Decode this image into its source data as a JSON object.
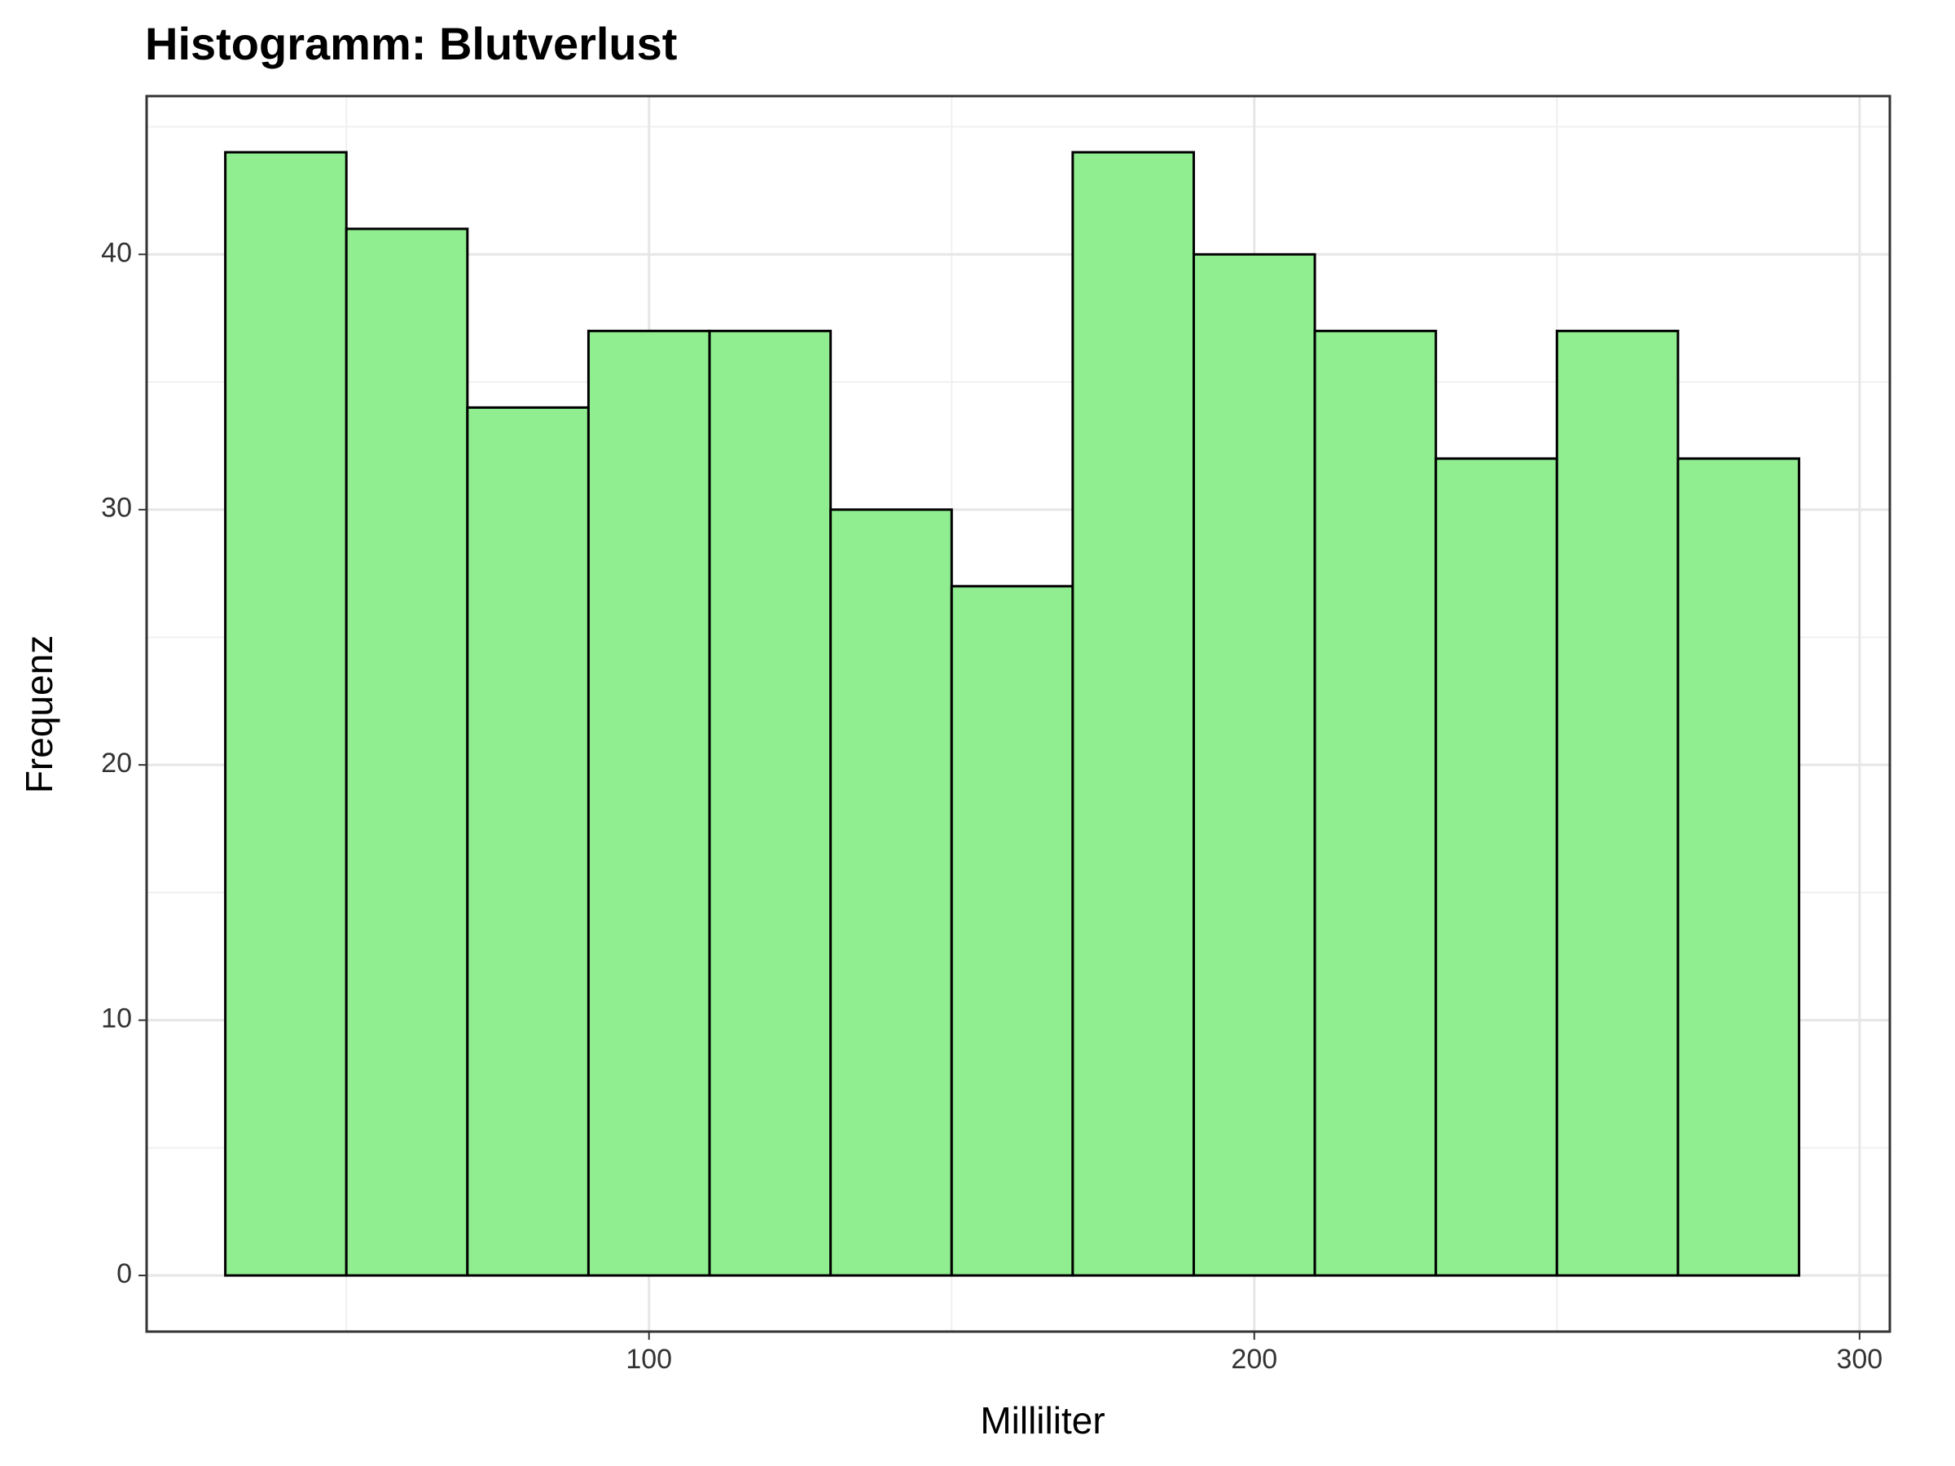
{
  "chart_data": {
    "type": "histogram",
    "title": "Histogramm: Blutverlust",
    "x_label": "Milliliter",
    "y_label": "Frequenz",
    "bins": [
      30,
      50,
      70,
      90,
      110,
      130,
      150,
      170,
      190,
      210,
      230,
      250,
      270,
      290
    ],
    "values": [
      44,
      41,
      34,
      37,
      37,
      30,
      27,
      44,
      40,
      37,
      32,
      37,
      32
    ],
    "color": "#90ee90",
    "edgecolor": "#000000",
    "xlim": [
      17,
      305
    ],
    "xticks": [
      100,
      200,
      300
    ],
    "ylim": [
      -2.2,
      46.2
    ],
    "yticks": [
      0,
      10,
      20,
      30,
      40
    ],
    "grid": true
  }
}
